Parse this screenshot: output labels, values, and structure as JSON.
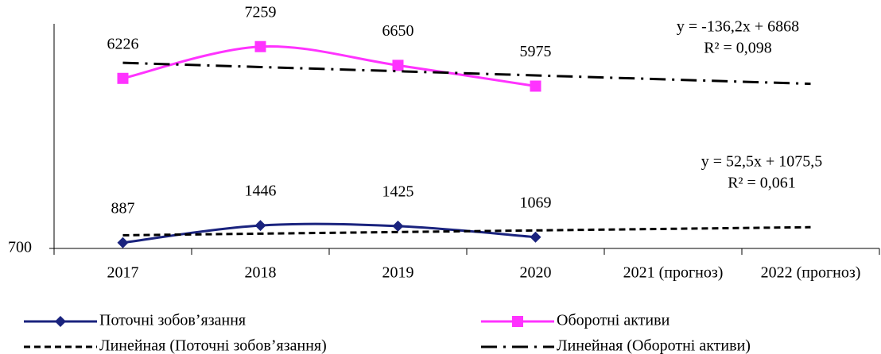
{
  "chart_data": {
    "type": "line",
    "categories": [
      "2017",
      "2018",
      "2019",
      "2020",
      "2021 (прогноз)",
      "2022 (прогноз)"
    ],
    "series": [
      {
        "name": "Поточні зобов’язання",
        "color": "#1a237e",
        "marker": "diamond",
        "style": "solid",
        "smooth": true,
        "values": [
          887,
          1446,
          1425,
          1069,
          null,
          null
        ],
        "data_labels": true
      },
      {
        "name": "Оборотні активи",
        "color": "#ff33ff",
        "marker": "square",
        "style": "solid",
        "smooth": true,
        "values": [
          6226,
          7259,
          6650,
          5975,
          null,
          null
        ],
        "data_labels": true
      },
      {
        "name": "Линейная (Поточні зобов’язання)",
        "color": "#000000",
        "marker": "none",
        "style": "dashed",
        "smooth": false,
        "values": [
          1128,
          1180.5,
          1233,
          1285.5,
          1338,
          1390.5
        ],
        "data_labels": false
      },
      {
        "name": "Линейная (Оборотні активи)",
        "color": "#000000",
        "marker": "none",
        "style": "dash-dot",
        "smooth": false,
        "values": [
          6731.8,
          6595.6,
          6459.4,
          6323.2,
          6187,
          6050.8
        ],
        "data_labels": false
      }
    ],
    "annotations": [
      {
        "lines": [
          "y = -136,2x + 6868",
          "R² = 0,098"
        ]
      },
      {
        "lines": [
          "y = 52,5x + 1075,5",
          "R² = 0,061"
        ]
      }
    ],
    "ylim": [
      700,
      8000
    ],
    "yticks": [
      700
    ],
    "grid": false
  }
}
